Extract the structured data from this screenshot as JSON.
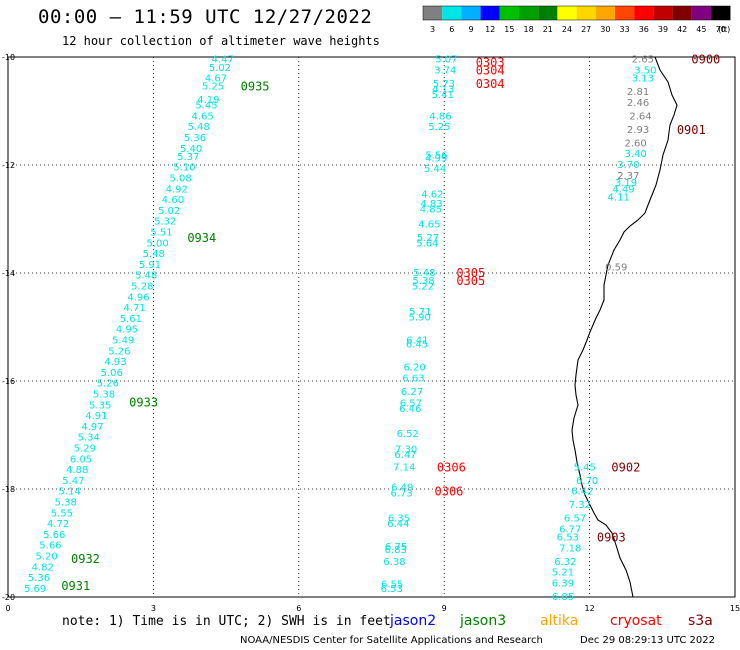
{
  "title": "00:00 – 11:59 UTC 12/27/2022",
  "subtitle": "12 hour collection of altimeter wave heights",
  "chart_data": {
    "type": "scatter",
    "xlim": [
      0,
      15
    ],
    "ylim": [
      -20,
      -10
    ],
    "x_ticks": [
      "0",
      "3",
      "6",
      "9",
      "12",
      "15"
    ],
    "y_ticks": [
      "-10",
      "-12",
      "-14",
      "-16",
      "-18",
      "-20"
    ],
    "grid": true,
    "colorbar": {
      "labels": [
        "3",
        "6",
        "9",
        "12",
        "15",
        "18",
        "21",
        "24",
        "27",
        "30",
        "33",
        "36",
        "39",
        "42",
        "45",
        "70"
      ],
      "unit": "(ft)",
      "colors": [
        "#808080",
        "#00e5e5",
        "#00b0ff",
        "#0000ff",
        "#00c000",
        "#00a000",
        "#008000",
        "#ffff00",
        "#ffd700",
        "#ffa500",
        "#ff4500",
        "#ff0000",
        "#c00000",
        "#800000",
        "#800080",
        "#000000"
      ]
    },
    "track_label_colors": {
      "jason2": "#0000ff",
      "jason3": "#008000",
      "altika": "#ffa500",
      "cryosat": "#ff0000",
      "s3a": "#800000",
      "grey": "#808080",
      "cyan": "#00e5e5"
    },
    "tracks": [
      {
        "color": "cyan",
        "points": [
          [
            4.47,
            -10.05
          ],
          [
            5.02,
            -10.2
          ],
          [
            4.67,
            -10.4
          ],
          [
            5.25,
            -10.55
          ],
          [
            4.19,
            -10.8
          ],
          [
            5.45,
            -10.9
          ],
          [
            4.65,
            -11.1
          ],
          [
            5.48,
            -11.3
          ],
          [
            5.36,
            -11.5
          ],
          [
            5.4,
            -11.7
          ],
          [
            5.37,
            -11.85
          ],
          [
            5.1,
            -12.05
          ],
          [
            5.08,
            -12.25
          ],
          [
            4.92,
            -12.45
          ],
          [
            4.6,
            -12.65
          ],
          [
            5.02,
            -12.85
          ],
          [
            5.32,
            -13.05
          ],
          [
            5.51,
            -13.25
          ],
          [
            5.0,
            -13.45
          ],
          [
            5.48,
            -13.65
          ],
          [
            5.91,
            -13.85
          ],
          [
            5.48,
            -14.05
          ],
          [
            5.28,
            -14.25
          ],
          [
            4.96,
            -14.45
          ],
          [
            4.71,
            -14.65
          ],
          [
            5.61,
            -14.85
          ],
          [
            4.95,
            -15.05
          ],
          [
            5.49,
            -15.25
          ],
          [
            5.26,
            -15.45
          ],
          [
            4.93,
            -15.65
          ],
          [
            5.06,
            -15.85
          ],
          [
            5.26,
            -16.05
          ],
          [
            5.38,
            -16.25
          ],
          [
            5.35,
            -16.45
          ],
          [
            4.91,
            -16.65
          ],
          [
            4.97,
            -16.85
          ],
          [
            5.34,
            -17.05
          ],
          [
            5.29,
            -17.25
          ],
          [
            6.05,
            -17.45
          ],
          [
            4.88,
            -17.65
          ],
          [
            5.47,
            -17.85
          ],
          [
            5.14,
            -18.05
          ],
          [
            5.38,
            -18.25
          ],
          [
            5.55,
            -18.45
          ],
          [
            4.72,
            -18.65
          ],
          [
            5.66,
            -18.85
          ],
          [
            5.66,
            -19.05
          ],
          [
            5.2,
            -19.25
          ],
          [
            4.82,
            -19.45
          ],
          [
            5.36,
            -19.65
          ],
          [
            5.69,
            -19.85
          ]
        ],
        "x0": 4.47,
        "x1": 0.55
      },
      {
        "color": "cyan",
        "points": [
          [
            5.07,
            -10.05
          ],
          [
            3.74,
            -10.25
          ],
          [
            5.73,
            -10.5
          ],
          [
            4.13,
            -10.6
          ],
          [
            5.41,
            -10.7
          ],
          [
            4.86,
            -11.1
          ],
          [
            5.25,
            -11.3
          ],
          [
            5.56,
            -11.82
          ],
          [
            4.99,
            -11.88
          ],
          [
            5.44,
            -12.07
          ],
          [
            4.62,
            -12.55
          ],
          [
            4.83,
            -12.72
          ],
          [
            4.85,
            -12.82
          ],
          [
            4.65,
            -13.1
          ],
          [
            5.27,
            -13.35
          ],
          [
            5.64,
            -13.45
          ],
          [
            5.48,
            -14.0
          ],
          [
            5.38,
            -14.15
          ],
          [
            5.22,
            -14.25
          ],
          [
            5.71,
            -14.72
          ],
          [
            5.9,
            -14.82
          ],
          [
            6.41,
            -15.25
          ],
          [
            6.45,
            -15.32
          ],
          [
            6.2,
            -15.75
          ],
          [
            6.63,
            -15.95
          ],
          [
            6.27,
            -16.2
          ],
          [
            6.57,
            -16.42
          ],
          [
            6.46,
            -16.52
          ],
          [
            6.52,
            -16.98
          ],
          [
            7.3,
            -17.27
          ],
          [
            6.47,
            -17.37
          ],
          [
            7.14,
            -17.6
          ],
          [
            6.49,
            -17.97
          ],
          [
            6.73,
            -18.08
          ],
          [
            6.35,
            -18.55
          ],
          [
            6.44,
            -18.65
          ],
          [
            6.75,
            -19.07
          ],
          [
            6.83,
            -19.13
          ],
          [
            6.38,
            -19.35
          ],
          [
            6.55,
            -19.77
          ],
          [
            6.53,
            -19.85
          ]
        ],
        "x0": 9.05,
        "x1": 8.0
      },
      {
        "color": "grey",
        "points": [
          [
            2.65,
            -10.05
          ],
          [
            2.46,
            -10.85
          ],
          [
            2.64,
            -11.1
          ],
          [
            2.93,
            -11.35
          ],
          [
            2.6,
            -11.6
          ],
          [
            2.37,
            -12.2
          ],
          [
            0.59,
            -13.9
          ],
          [
            2.81,
            -10.65
          ]
        ]
      },
      {
        "color": "cyan",
        "points": [
          [
            3.5,
            -10.25
          ],
          [
            3.13,
            -10.4
          ],
          [
            3.4,
            -11.8
          ],
          [
            3.7,
            -12.0
          ],
          [
            3.19,
            -12.33
          ],
          [
            4.49,
            -12.45
          ],
          [
            4.11,
            -12.6
          ]
        ]
      },
      {
        "color": "cyan",
        "points": [
          [
            5.45,
            -17.6
          ],
          [
            6.7,
            -17.85
          ],
          [
            6.42,
            -18.05
          ],
          [
            7.32,
            -18.3
          ],
          [
            6.57,
            -18.55
          ],
          [
            6.77,
            -18.75
          ],
          [
            6.53,
            -18.9
          ],
          [
            7.18,
            -19.1
          ],
          [
            6.32,
            -19.35
          ],
          [
            5.21,
            -19.55
          ],
          [
            6.39,
            -19.75
          ],
          [
            6.85,
            -20.0
          ]
        ]
      }
    ],
    "time_labels": [
      {
        "text": "0935",
        "color": "jason3",
        "x": 4.8,
        "y": -10.55
      },
      {
        "text": "0934",
        "color": "jason3",
        "x": 3.7,
        "y": -13.35
      },
      {
        "text": "0933",
        "color": "jason3",
        "x": 2.5,
        "y": -16.4
      },
      {
        "text": "0932",
        "color": "jason3",
        "x": 1.3,
        "y": -19.3
      },
      {
        "text": "0931",
        "color": "jason3",
        "x": 1.1,
        "y": -19.8
      },
      {
        "text": "0303",
        "color": "cryosat",
        "x": 9.65,
        "y": -10.1
      },
      {
        "text": "0304",
        "color": "cryosat",
        "x": 9.65,
        "y": -10.25
      },
      {
        "text": "0304",
        "color": "cryosat",
        "x": 9.65,
        "y": -10.5
      },
      {
        "text": "0305",
        "color": "cryosat",
        "x": 9.25,
        "y": -14.0
      },
      {
        "text": "0305",
        "color": "cryosat",
        "x": 9.25,
        "y": -14.15
      },
      {
        "text": "0306",
        "color": "cryosat",
        "x": 8.85,
        "y": -17.6
      },
      {
        "text": "0306",
        "color": "cryosat",
        "x": 8.8,
        "y": -18.05
      },
      {
        "text": "0900",
        "color": "s3a",
        "x": 14.1,
        "y": -10.05
      },
      {
        "text": "0901",
        "color": "s3a",
        "x": 13.8,
        "y": -11.35
      },
      {
        "text": "0902",
        "color": "s3a",
        "x": 12.45,
        "y": -17.6
      },
      {
        "text": "0903",
        "color": "s3a",
        "x": 12.15,
        "y": -18.9
      }
    ]
  },
  "footer": {
    "note": "note: 1) Time is in UTC; 2) SWH is in feet",
    "legend": [
      {
        "name": "jason2",
        "color": "#0000ff"
      },
      {
        "name": "jason3",
        "color": "#008000"
      },
      {
        "name": "altika",
        "color": "#ffa500"
      },
      {
        "name": "cryosat",
        "color": "#ff0000"
      },
      {
        "name": "s3a",
        "color": "#800000"
      }
    ],
    "credit": "NOAA/NESDIS Center for Satellite Applications and Research",
    "timestamp": "Dec 29 08:29:13 UTC 2022"
  }
}
